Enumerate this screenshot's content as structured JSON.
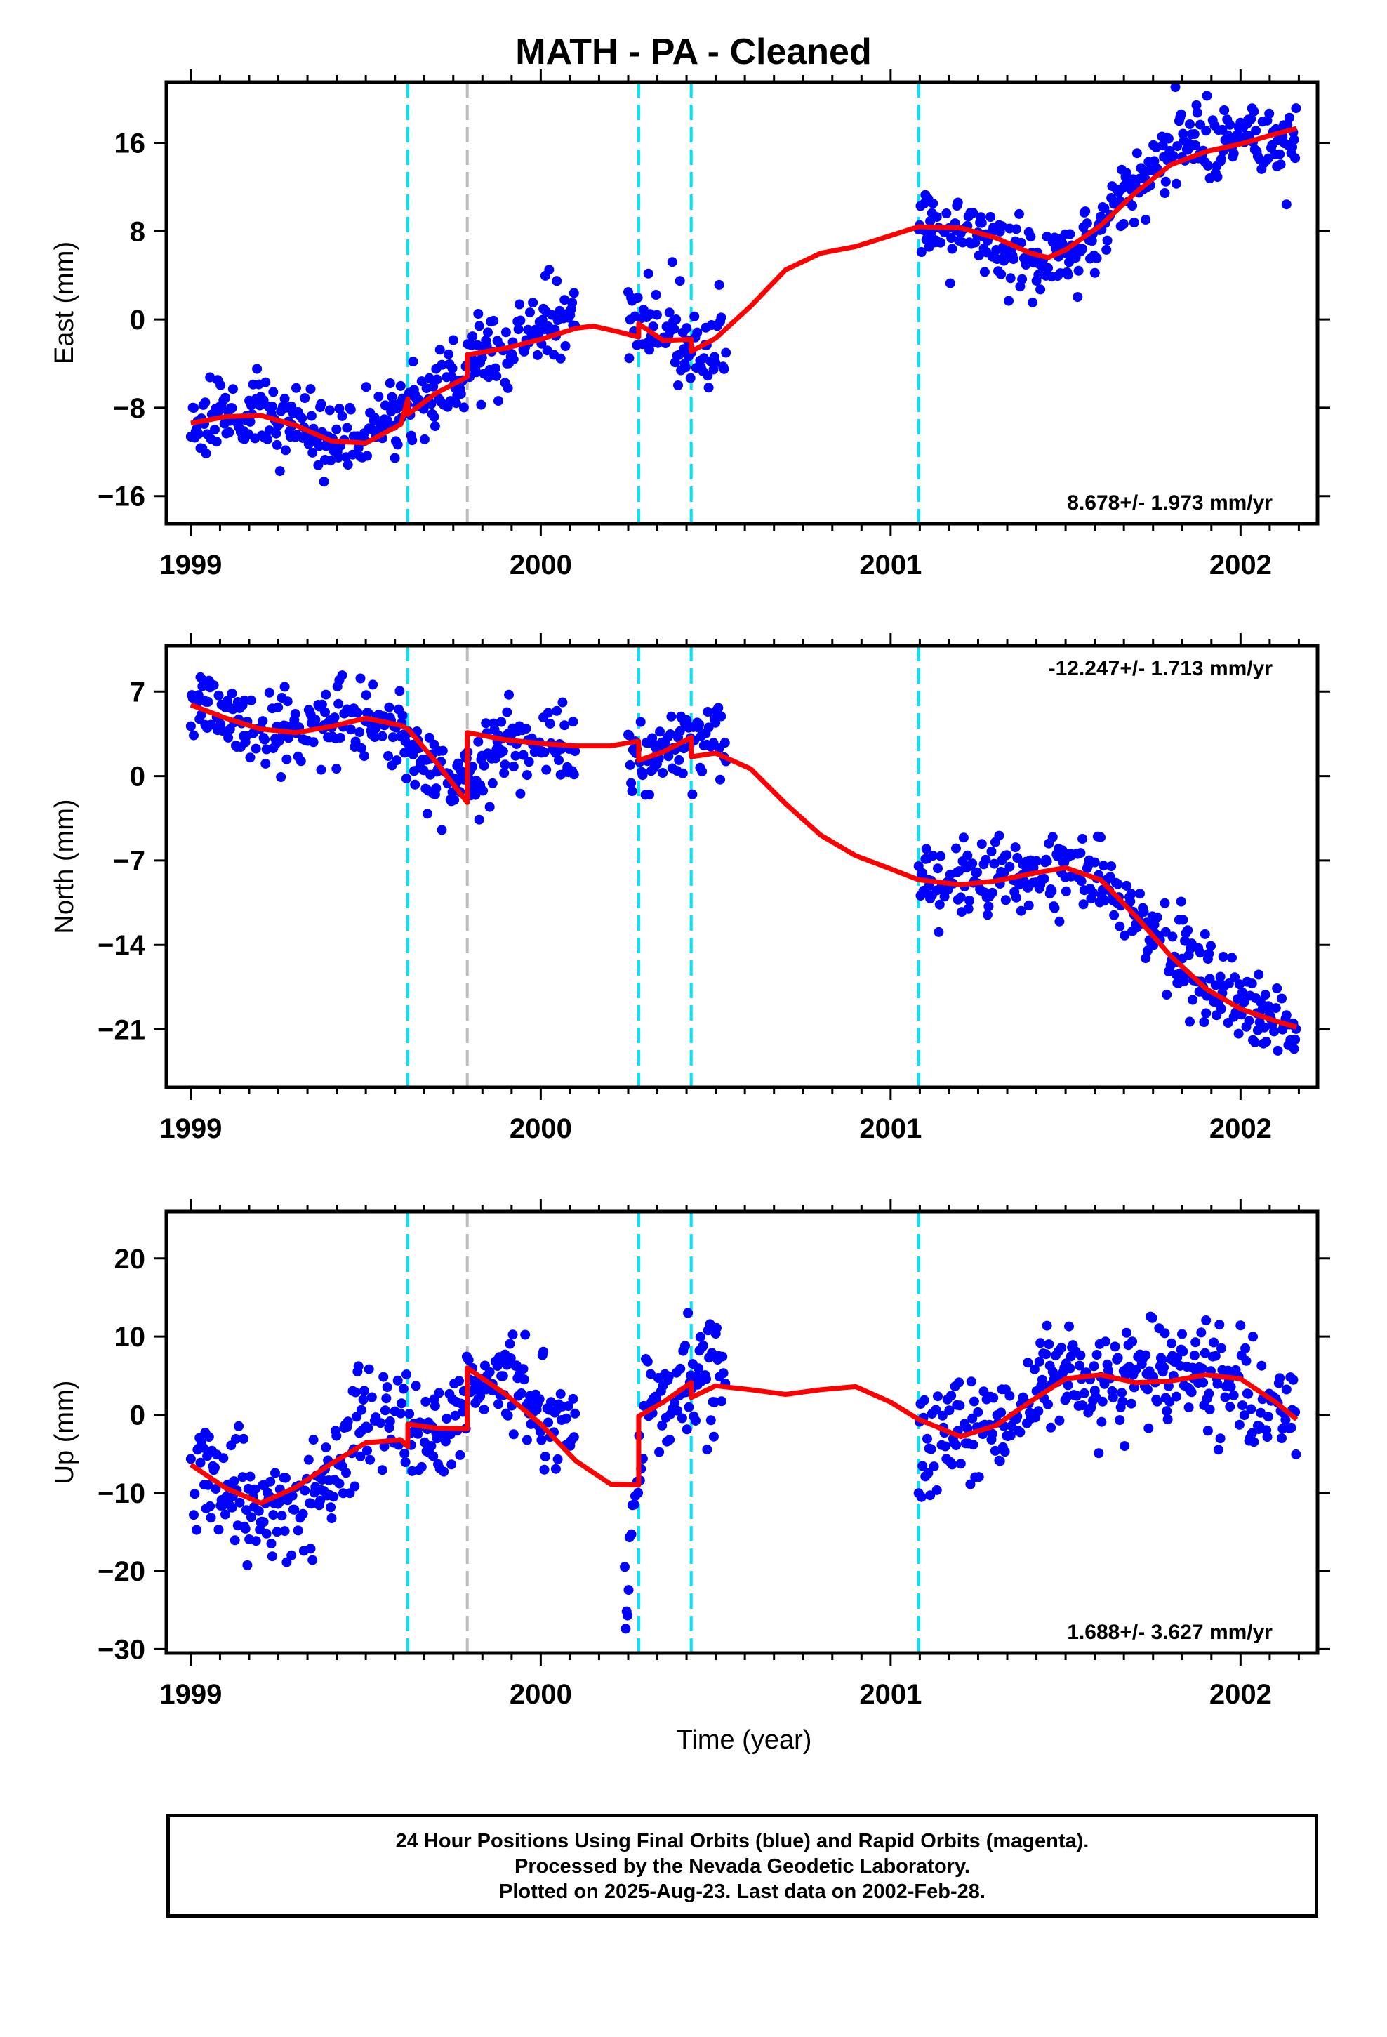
{
  "title": "MATH  - PA - Cleaned",
  "xlabel": "Time (year)",
  "footer": {
    "line1": "24 Hour Positions Using Final Orbits (blue) and Rapid Orbits (magenta).",
    "line2": "Processed by the Nevada Geodetic Laboratory.",
    "line3": "Plotted on 2025-Aug-23. Last data on 2002-Feb-28."
  },
  "colors": {
    "points": "#0000ff",
    "fit": "#ff0000",
    "offset_dashed": "#00e5ff",
    "offset_gray": "#bbbbbb",
    "frame": "#000000"
  },
  "chart_data": [
    {
      "type": "scatter",
      "component": "east",
      "ylabel": "East (mm)",
      "rate_text": "8.678+/- 1.973 mm/yr",
      "xlim": [
        1998.93,
        2002.22
      ],
      "ylim": [
        -18.5,
        21.5
      ],
      "xticks": [
        1999,
        2000,
        2001,
        2002
      ],
      "yticks": [
        16,
        8,
        0,
        -8,
        -16
      ],
      "vlines_cyan": [
        1999.62,
        2000.28,
        2000.43,
        2001.08
      ],
      "vlines_gray": [
        1999.79
      ],
      "data_segments": [
        [
          1999.0,
          2000.1
        ],
        [
          2000.25,
          2000.53
        ],
        [
          2001.08,
          2002.16
        ]
      ],
      "fit": [
        [
          1999.0,
          -9.4
        ],
        [
          1999.1,
          -8.8
        ],
        [
          1999.2,
          -8.7
        ],
        [
          1999.3,
          -9.6
        ],
        [
          1999.4,
          -11.0
        ],
        [
          1999.5,
          -11.2
        ],
        [
          1999.6,
          -9.5
        ],
        [
          1999.62,
          -7.2
        ],
        [
          1999.62,
          -8.6
        ],
        [
          1999.7,
          -6.7
        ],
        [
          1999.79,
          -5.2
        ],
        [
          1999.79,
          -3.2
        ],
        [
          1999.9,
          -2.6
        ],
        [
          2000.0,
          -1.8
        ],
        [
          2000.1,
          -0.8
        ],
        [
          2000.15,
          -0.6
        ],
        [
          2000.22,
          -1.1
        ],
        [
          2000.28,
          -1.6
        ],
        [
          2000.28,
          -0.4
        ],
        [
          2000.35,
          -1.9
        ],
        [
          2000.43,
          -1.8
        ],
        [
          2000.43,
          -2.9
        ],
        [
          2000.5,
          -1.7
        ],
        [
          2000.6,
          1.2
        ],
        [
          2000.7,
          4.5
        ],
        [
          2000.8,
          6.0
        ],
        [
          2000.9,
          6.6
        ],
        [
          2001.0,
          7.6
        ],
        [
          2001.08,
          8.4
        ],
        [
          2001.2,
          8.3
        ],
        [
          2001.3,
          7.4
        ],
        [
          2001.4,
          6.0
        ],
        [
          2001.45,
          5.6
        ],
        [
          2001.5,
          6.3
        ],
        [
          2001.6,
          8.5
        ],
        [
          2001.7,
          11.5
        ],
        [
          2001.8,
          14.0
        ],
        [
          2001.9,
          15.2
        ],
        [
          2002.0,
          15.9
        ],
        [
          2002.1,
          16.8
        ],
        [
          2002.16,
          17.3
        ]
      ],
      "pattern": [
        [
          1999.0,
          -8.9
        ],
        [
          1999.1,
          -8.6
        ],
        [
          1999.2,
          -8.8
        ],
        [
          1999.3,
          -9.7
        ],
        [
          1999.4,
          -10.9
        ],
        [
          1999.5,
          -10.6
        ],
        [
          1999.6,
          -8.4
        ],
        [
          1999.7,
          -6.3
        ],
        [
          1999.79,
          -3.9
        ],
        [
          1999.9,
          -2.2
        ],
        [
          2000.0,
          0.0
        ],
        [
          2000.1,
          1.0
        ],
        [
          2000.25,
          0.5
        ],
        [
          2000.35,
          -1.2
        ],
        [
          2000.45,
          -2.4
        ],
        [
          2000.53,
          -2.0
        ],
        [
          2001.08,
          8.7
        ],
        [
          2001.2,
          8.1
        ],
        [
          2001.3,
          6.8
        ],
        [
          2001.4,
          5.2
        ],
        [
          2001.5,
          5.8
        ],
        [
          2001.6,
          8.6
        ],
        [
          2001.7,
          12.4
        ],
        [
          2001.8,
          15.3
        ],
        [
          2001.9,
          16.6
        ],
        [
          2002.0,
          16.1
        ],
        [
          2002.1,
          15.2
        ],
        [
          2002.16,
          15.8
        ]
      ],
      "spread": 1.8,
      "seed": 11
    },
    {
      "type": "scatter",
      "component": "north",
      "ylabel": "North (mm)",
      "rate_text": "-12.247+/- 1.713 mm/yr",
      "xlim": [
        1998.93,
        2002.22
      ],
      "ylim": [
        -25.8,
        10.8
      ],
      "xticks": [
        1999,
        2000,
        2001,
        2002
      ],
      "yticks": [
        7,
        0,
        -7,
        -14,
        -21
      ],
      "vlines_cyan": [
        1999.62,
        2000.28,
        2000.43,
        2001.08
      ],
      "vlines_gray": [
        1999.79
      ],
      "data_segments": [
        [
          1999.0,
          2000.1
        ],
        [
          2000.25,
          2000.53
        ],
        [
          2001.08,
          2002.16
        ]
      ],
      "fit": [
        [
          1999.0,
          5.9
        ],
        [
          1999.1,
          4.8
        ],
        [
          1999.2,
          3.9
        ],
        [
          1999.3,
          3.6
        ],
        [
          1999.4,
          4.1
        ],
        [
          1999.5,
          4.8
        ],
        [
          1999.6,
          4.2
        ],
        [
          1999.62,
          3.9
        ],
        [
          1999.7,
          1.2
        ],
        [
          1999.79,
          -2.2
        ],
        [
          1999.79,
          3.6
        ],
        [
          1999.9,
          3.0
        ],
        [
          2000.0,
          2.7
        ],
        [
          2000.1,
          2.5
        ],
        [
          2000.2,
          2.5
        ],
        [
          2000.28,
          2.9
        ],
        [
          2000.28,
          1.3
        ],
        [
          2000.35,
          2.0
        ],
        [
          2000.43,
          3.2
        ],
        [
          2000.43,
          1.6
        ],
        [
          2000.5,
          1.9
        ],
        [
          2000.6,
          0.6
        ],
        [
          2000.7,
          -2.3
        ],
        [
          2000.8,
          -4.9
        ],
        [
          2000.9,
          -6.6
        ],
        [
          2001.0,
          -7.7
        ],
        [
          2001.08,
          -8.6
        ],
        [
          2001.2,
          -9.0
        ],
        [
          2001.3,
          -8.7
        ],
        [
          2001.4,
          -8.1
        ],
        [
          2001.5,
          -7.6
        ],
        [
          2001.6,
          -8.6
        ],
        [
          2001.7,
          -11.6
        ],
        [
          2001.8,
          -14.9
        ],
        [
          2001.9,
          -17.6
        ],
        [
          2002.0,
          -19.3
        ],
        [
          2002.1,
          -20.3
        ],
        [
          2002.16,
          -20.8
        ]
      ],
      "pattern": [
        [
          1999.0,
          6.2
        ],
        [
          1999.1,
          5.0
        ],
        [
          1999.2,
          3.4
        ],
        [
          1999.3,
          3.6
        ],
        [
          1999.4,
          4.6
        ],
        [
          1999.5,
          4.8
        ],
        [
          1999.6,
          3.6
        ],
        [
          1999.7,
          0.4
        ],
        [
          1999.79,
          -0.7
        ],
        [
          1999.9,
          3.0
        ],
        [
          2000.0,
          2.6
        ],
        [
          2000.1,
          2.5
        ],
        [
          2000.25,
          1.7
        ],
        [
          2000.35,
          2.2
        ],
        [
          2000.45,
          2.6
        ],
        [
          2000.53,
          2.0
        ],
        [
          2001.08,
          -8.2
        ],
        [
          2001.2,
          -8.8
        ],
        [
          2001.3,
          -8.3
        ],
        [
          2001.4,
          -7.9
        ],
        [
          2001.5,
          -7.7
        ],
        [
          2001.6,
          -8.4
        ],
        [
          2001.7,
          -11.4
        ],
        [
          2001.8,
          -14.7
        ],
        [
          2001.9,
          -17.3
        ],
        [
          2002.0,
          -19.2
        ],
        [
          2002.1,
          -20.2
        ],
        [
          2002.16,
          -21.0
        ]
      ],
      "spread": 1.6,
      "seed": 23
    },
    {
      "type": "scatter",
      "component": "up",
      "ylabel": "Up (mm)",
      "rate_text": "1.688+/- 3.627 mm/yr",
      "xlim": [
        1998.93,
        2002.22
      ],
      "ylim": [
        -30.5,
        26.0
      ],
      "xticks": [
        1999,
        2000,
        2001,
        2002
      ],
      "yticks": [
        20,
        10,
        0,
        -10,
        -20,
        -30
      ],
      "vlines_cyan": [
        1999.62,
        2000.28,
        2000.43,
        2001.08
      ],
      "vlines_gray": [
        1999.79
      ],
      "data_segments": [
        [
          1999.0,
          2000.1
        ],
        [
          2000.24,
          2000.53
        ],
        [
          2001.08,
          2002.16
        ]
      ],
      "fit": [
        [
          1999.0,
          -6.4
        ],
        [
          1999.1,
          -9.4
        ],
        [
          1999.2,
          -11.3
        ],
        [
          1999.3,
          -9.3
        ],
        [
          1999.4,
          -6.3
        ],
        [
          1999.5,
          -3.6
        ],
        [
          1999.6,
          -3.2
        ],
        [
          1999.62,
          -4.1
        ],
        [
          1999.62,
          -1.2
        ],
        [
          1999.7,
          -1.7
        ],
        [
          1999.79,
          -1.8
        ],
        [
          1999.79,
          6.0
        ],
        [
          1999.9,
          2.6
        ],
        [
          2000.0,
          -1.2
        ],
        [
          2000.1,
          -5.9
        ],
        [
          2000.2,
          -8.9
        ],
        [
          2000.28,
          -9.0
        ],
        [
          2000.28,
          -0.2
        ],
        [
          2000.35,
          1.6
        ],
        [
          2000.43,
          4.1
        ],
        [
          2000.43,
          2.2
        ],
        [
          2000.5,
          3.7
        ],
        [
          2000.6,
          3.2
        ],
        [
          2000.7,
          2.6
        ],
        [
          2000.8,
          3.2
        ],
        [
          2000.9,
          3.6
        ],
        [
          2001.0,
          1.6
        ],
        [
          2001.08,
          -0.6
        ],
        [
          2001.2,
          -2.8
        ],
        [
          2001.3,
          -1.4
        ],
        [
          2001.4,
          1.7
        ],
        [
          2001.5,
          4.6
        ],
        [
          2001.6,
          5.1
        ],
        [
          2001.7,
          4.1
        ],
        [
          2001.8,
          4.3
        ],
        [
          2001.9,
          5.1
        ],
        [
          2002.0,
          4.6
        ],
        [
          2002.1,
          1.6
        ],
        [
          2002.16,
          -0.6
        ]
      ],
      "pattern": [
        [
          1999.0,
          -7.5
        ],
        [
          1999.1,
          -9.2
        ],
        [
          1999.2,
          -12.5
        ],
        [
          1999.3,
          -13.5
        ],
        [
          1999.4,
          -7.2
        ],
        [
          1999.5,
          0.6
        ],
        [
          1999.6,
          -1.6
        ],
        [
          1999.7,
          -4.0
        ],
        [
          1999.79,
          2.5
        ],
        [
          1999.9,
          5.0
        ],
        [
          2000.0,
          0.5
        ],
        [
          2000.1,
          -2.2
        ],
        [
          2000.24,
          -23.0
        ],
        [
          2000.3,
          1.5
        ],
        [
          2000.4,
          3.4
        ],
        [
          2000.53,
          4.5
        ],
        [
          2001.08,
          -3.2
        ],
        [
          2001.2,
          -2.3
        ],
        [
          2001.3,
          -1.8
        ],
        [
          2001.4,
          1.8
        ],
        [
          2001.5,
          6.6
        ],
        [
          2001.6,
          3.2
        ],
        [
          2001.7,
          4.6
        ],
        [
          2001.8,
          6.6
        ],
        [
          2001.9,
          5.0
        ],
        [
          2002.0,
          2.4
        ],
        [
          2002.1,
          0.5
        ],
        [
          2002.16,
          -1.2
        ]
      ],
      "spread": 3.4,
      "seed": 37
    }
  ]
}
